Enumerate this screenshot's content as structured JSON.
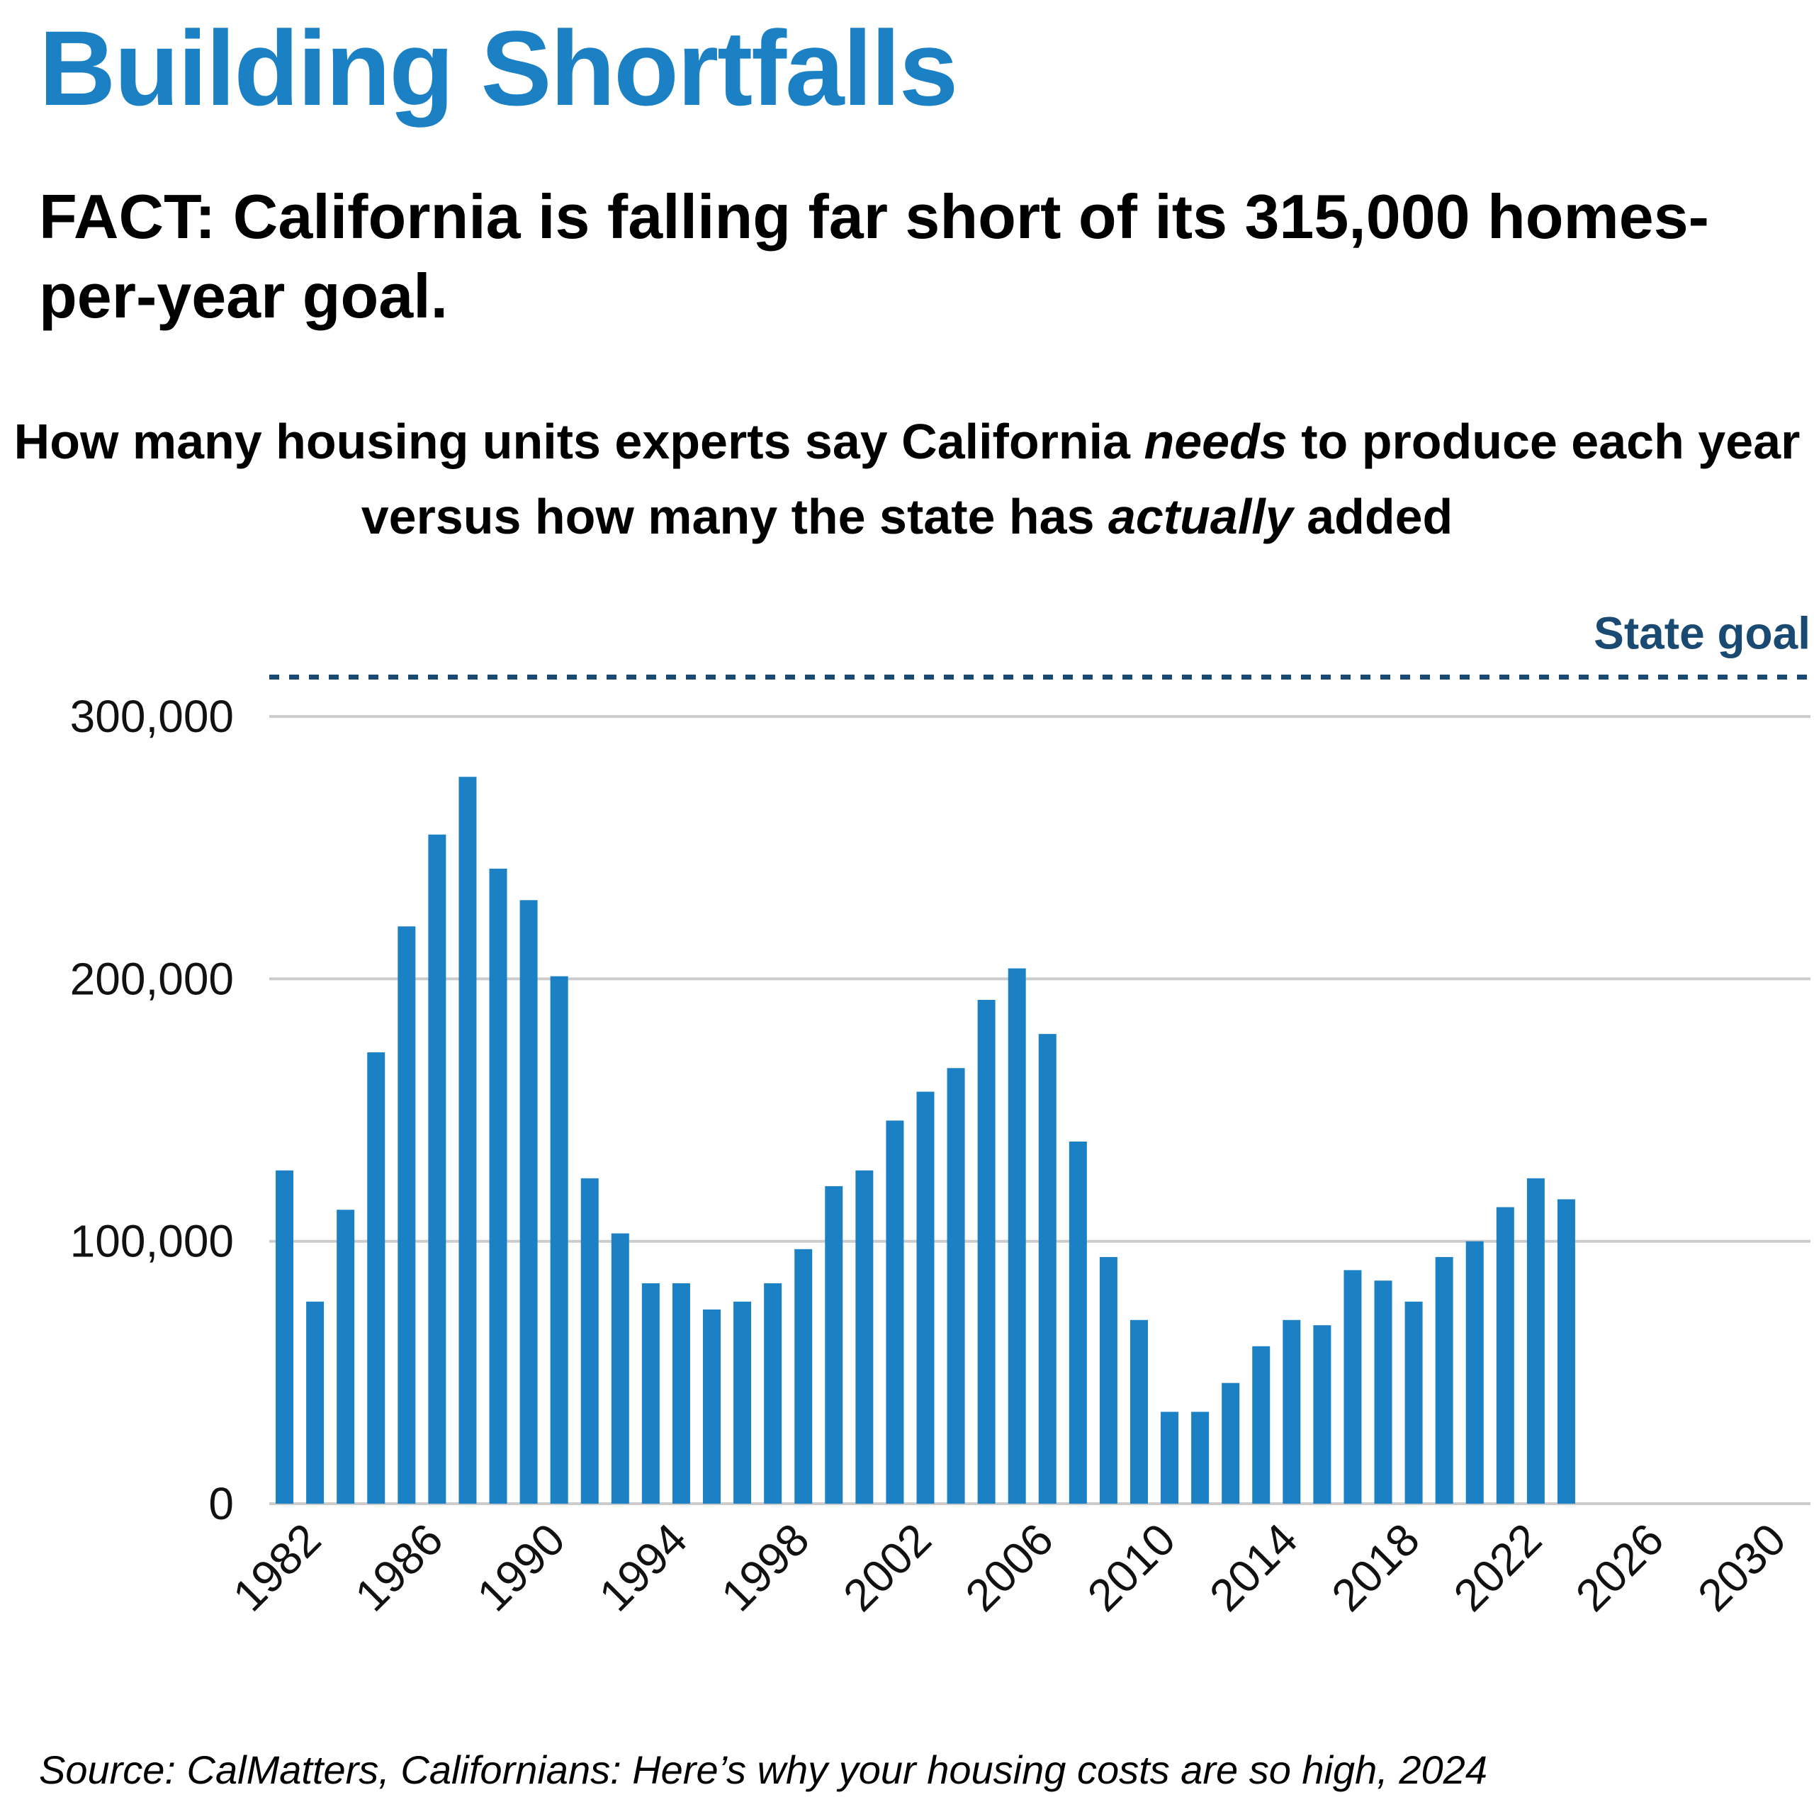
{
  "header": {
    "title": "Building Shortfalls",
    "fact_lead": "FACT:",
    "fact_text": " California is falling far short of its 315,000 homes-per-year goal.",
    "subtitle_part1": "How many housing units experts say California ",
    "subtitle_em1": "needs",
    "subtitle_part2": " to produce each year versus how many the state has ",
    "subtitle_em2": "actually",
    "subtitle_part3": " added"
  },
  "source": "Source: CalMatters, Californians: Here’s why your housing costs are so high, 2024",
  "colors": {
    "bar": "#1b80c4",
    "goal": "#1a4a72",
    "grid": "#cccccc",
    "title": "#1b80c4"
  },
  "chart_data": {
    "type": "bar",
    "title": "",
    "xlabel": "",
    "ylabel": "",
    "x": [
      1982,
      1983,
      1984,
      1985,
      1986,
      1987,
      1988,
      1989,
      1990,
      1991,
      1992,
      1993,
      1994,
      1995,
      1996,
      1997,
      1998,
      1999,
      2000,
      2001,
      2002,
      2003,
      2004,
      2005,
      2006,
      2007,
      2008,
      2009,
      2010,
      2011,
      2012,
      2013,
      2014,
      2015,
      2016,
      2017,
      2018,
      2019,
      2020,
      2021,
      2022,
      2023,
      2024
    ],
    "values": [
      127000,
      77000,
      112000,
      172000,
      220000,
      255000,
      277000,
      242000,
      230000,
      201000,
      124000,
      103000,
      84000,
      84000,
      74000,
      77000,
      84000,
      97000,
      121000,
      127000,
      146000,
      157000,
      166000,
      192000,
      204000,
      179000,
      138000,
      94000,
      70000,
      35000,
      35000,
      46000,
      60000,
      70000,
      68000,
      89000,
      85000,
      77000,
      94000,
      100000,
      113000,
      124000,
      116000
    ],
    "xlim": [
      1981.5,
      2032
    ],
    "ylim": [
      0,
      330000
    ],
    "y_ticks": [
      0,
      100000,
      200000,
      300000
    ],
    "y_tick_labels": [
      "0",
      "100,000",
      "200,000",
      "300,000"
    ],
    "x_ticks": [
      1982,
      1986,
      1990,
      1994,
      1998,
      2002,
      2006,
      2010,
      2014,
      2018,
      2022,
      2026,
      2030
    ],
    "grid": "horizontal",
    "reference_line": {
      "label": "State goal",
      "value": 315000
    }
  }
}
